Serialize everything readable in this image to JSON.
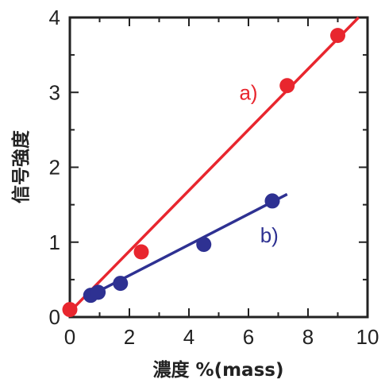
{
  "chart_data": {
    "type": "scatter",
    "xlabel": "濃度 %(mass)",
    "ylabel": "信号強度",
    "xlim": [
      0,
      10
    ],
    "ylim": [
      0,
      4
    ],
    "x_ticks": [
      "0",
      "2",
      "4",
      "6",
      "8",
      "10"
    ],
    "y_ticks": [
      "0",
      "1",
      "2",
      "3",
      "4"
    ],
    "grid": false,
    "series": [
      {
        "name": "a)",
        "color": "#e8262e",
        "points": [
          [
            0.0,
            0.1
          ],
          [
            2.4,
            0.87
          ],
          [
            7.3,
            3.09
          ],
          [
            9.0,
            3.76
          ]
        ],
        "fit_line": [
          [
            0.0,
            0.07
          ],
          [
            9.7,
            4.0
          ]
        ]
      },
      {
        "name": "b)",
        "color": "#2e3192",
        "points": [
          [
            0.7,
            0.29
          ],
          [
            0.95,
            0.33
          ],
          [
            1.7,
            0.45
          ],
          [
            4.5,
            0.97
          ],
          [
            6.8,
            1.55
          ]
        ],
        "fit_line": [
          [
            0.55,
            0.26
          ],
          [
            7.3,
            1.64
          ]
        ]
      }
    ]
  }
}
